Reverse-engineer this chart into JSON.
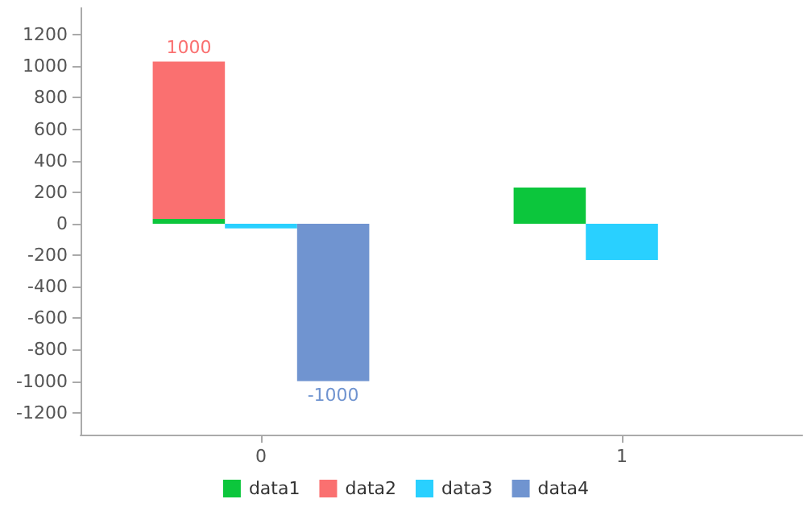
{
  "chart_data": {
    "type": "bar",
    "categories": [
      null,
      null,
      "0",
      null,
      null,
      null,
      null,
      "1",
      null,
      null
    ],
    "stacked": true,
    "series": [
      {
        "name": "data1",
        "color": "#0cc63c",
        "values": [
          null,
          30,
          null,
          null,
          null,
          null,
          230,
          null,
          null,
          null
        ]
      },
      {
        "name": "data2",
        "color": "#fa7070",
        "values": [
          null,
          1000,
          null,
          null,
          null,
          null,
          null,
          null,
          null,
          null
        ],
        "value_labels": [
          null,
          "1000",
          null,
          null,
          null,
          null,
          null,
          null,
          null,
          null
        ]
      },
      {
        "name": "data3",
        "color": "#29d0ff",
        "values": [
          null,
          null,
          -30,
          null,
          null,
          null,
          null,
          -230,
          null,
          null
        ]
      },
      {
        "name": "data4",
        "color": "#7094d0",
        "values": [
          null,
          null,
          null,
          -1000,
          null,
          null,
          null,
          null,
          null,
          null
        ],
        "value_labels": [
          null,
          null,
          null,
          "-1000",
          null,
          null,
          null,
          null,
          null,
          null
        ]
      }
    ],
    "ylim": [
      -1340,
      1370
    ],
    "yticks": [
      -1200,
      -1000,
      -800,
      -600,
      -400,
      -200,
      0,
      200,
      400,
      600,
      800,
      1000,
      1200
    ],
    "grid": false,
    "legend": "bottom"
  }
}
